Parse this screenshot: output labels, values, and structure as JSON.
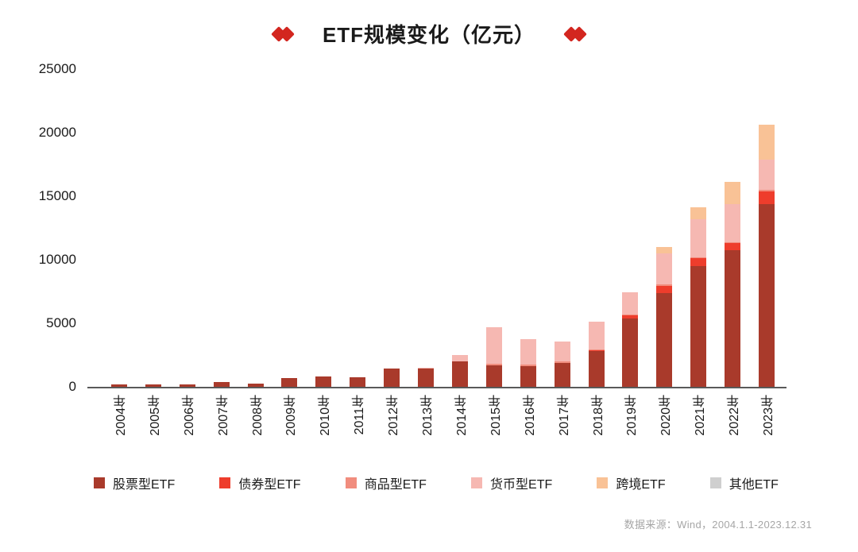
{
  "title": "ETF规模变化（亿元）",
  "footer_source": "数据来源：Wind，2004.1.1-2023.12.31",
  "colors": {
    "diamond": "#d3261f",
    "axis_line": "#595959",
    "stock": "#a93a2b",
    "bond": "#ee3d2c",
    "commodity": "#f18d7e",
    "money": "#f6b8b2",
    "cross": "#f9c296",
    "other": "#cfcfcf"
  },
  "chart_data": {
    "type": "bar",
    "stacked": true,
    "title": "ETF规模变化（亿元）",
    "xlabel": "",
    "ylabel": "",
    "ylim": [
      0,
      25000
    ],
    "yticks": [
      0,
      5000,
      10000,
      15000,
      20000,
      25000
    ],
    "grid": false,
    "legend_position": "bottom",
    "categories": [
      "2004年",
      "2005年",
      "2006年",
      "2007年",
      "2008年",
      "2009年",
      "2010年",
      "2011年",
      "2012年",
      "2013年",
      "2014年",
      "2015年",
      "2016年",
      "2017年",
      "2018年",
      "2019年",
      "2020年",
      "2021年",
      "2022年",
      "2023年"
    ],
    "series": [
      {
        "name": "股票型ETF",
        "color_key": "stock",
        "values": [
          54,
          65,
          120,
          350,
          250,
          680,
          840,
          780,
          1450,
          1450,
          2000,
          1700,
          1650,
          1900,
          2800,
          5400,
          7400,
          9500,
          10750,
          14400
        ]
      },
      {
        "name": "债券型ETF",
        "color_key": "bond",
        "values": [
          0,
          0,
          0,
          0,
          0,
          0,
          0,
          0,
          0,
          0,
          0,
          0,
          0,
          0,
          50,
          200,
          550,
          600,
          550,
          1000
        ]
      },
      {
        "name": "商品型ETF",
        "color_key": "commodity",
        "values": [
          0,
          0,
          0,
          0,
          0,
          0,
          0,
          0,
          0,
          0,
          0,
          100,
          100,
          100,
          100,
          100,
          100,
          100,
          100,
          100
        ]
      },
      {
        "name": "货币型ETF",
        "color_key": "money",
        "values": [
          0,
          0,
          0,
          0,
          0,
          0,
          0,
          0,
          0,
          80,
          500,
          2900,
          2000,
          1550,
          2150,
          1750,
          2450,
          3000,
          3000,
          2400
        ]
      },
      {
        "name": "跨境ETF",
        "color_key": "cross",
        "values": [
          0,
          0,
          0,
          0,
          0,
          0,
          0,
          0,
          0,
          0,
          0,
          0,
          0,
          0,
          0,
          0,
          500,
          950,
          1750,
          2700
        ]
      },
      {
        "name": "其他ETF",
        "color_key": "other",
        "values": [
          0,
          0,
          0,
          0,
          0,
          0,
          0,
          0,
          0,
          0,
          0,
          0,
          0,
          0,
          0,
          0,
          0,
          0,
          0,
          0
        ]
      }
    ],
    "source": "数据来源：Wind，2004.1.1-2023.12.31"
  }
}
